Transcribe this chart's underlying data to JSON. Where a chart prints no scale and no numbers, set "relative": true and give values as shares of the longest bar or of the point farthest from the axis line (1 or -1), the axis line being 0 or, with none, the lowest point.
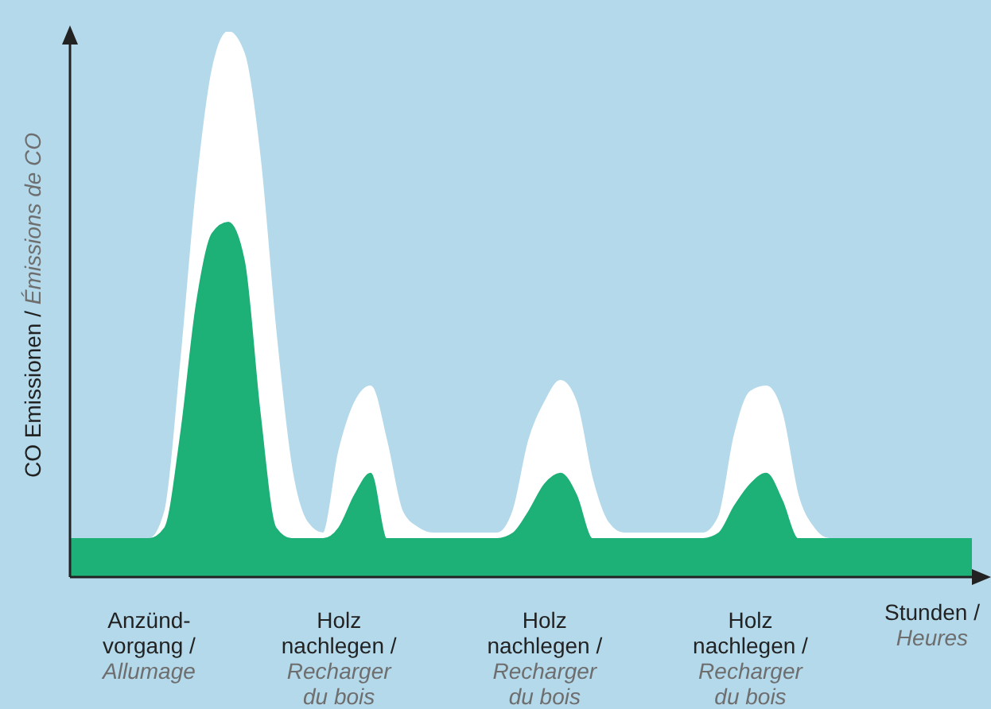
{
  "chart_data": {
    "type": "area",
    "relative": true,
    "ylabel": "CO Emissionen /\nÉmissions de CO",
    "xlabel": "Stunden /\nHeures",
    "categories": [
      null,
      null,
      null,
      null,
      null,
      "Anzünd-\nvorgang /\nAllumage",
      null,
      null,
      null,
      null,
      null,
      null,
      null,
      null,
      null,
      null,
      null,
      "Holz\nnachlegen /\nRecharger\ndu bois",
      null,
      null,
      null,
      null,
      null,
      null,
      null,
      null,
      null,
      null,
      null,
      null,
      "Holz\nnachlegen /\nRecharger\ndu bois",
      null,
      null,
      null,
      null,
      null,
      null,
      null,
      null,
      null,
      null,
      null,
      null,
      "Holz\nnachlegen /\nRecharger\ndu bois",
      null,
      null,
      null,
      null,
      null,
      null,
      null,
      null,
      null,
      null,
      null,
      null,
      null,
      null
    ],
    "series": [
      {
        "color": "#ffffff",
        "values": [
          0.07,
          0.07,
          0.07,
          0.07,
          0.07,
          0.07,
          0.12,
          0.39,
          0.71,
          0.93,
          1,
          0.96,
          0.77,
          0.45,
          0.2,
          0.1,
          0.08,
          0.23,
          0.32,
          0.35,
          0.25,
          0.12,
          0.09,
          0.08,
          0.08,
          0.08,
          0.08,
          0.08,
          0.12,
          0.25,
          0.32,
          0.36,
          0.32,
          0.18,
          0.1,
          0.08,
          0.08,
          0.08,
          0.08,
          0.08,
          0.08,
          0.11,
          0.26,
          0.34,
          0.35,
          0.3,
          0.15,
          0.09,
          0.07,
          0.07,
          0.07,
          0.07,
          0.07,
          0.07,
          0.07,
          0.07,
          0.07,
          0.07
        ]
      },
      {
        "color": "#1db077",
        "values": [
          0.07,
          0.07,
          0.07,
          0.07,
          0.07,
          0.07,
          0.09,
          0.26,
          0.5,
          0.63,
          0.65,
          0.58,
          0.3,
          0.09,
          0.07,
          0.07,
          0.07,
          0.09,
          0.15,
          0.19,
          0.07,
          0.07,
          0.07,
          0.07,
          0.07,
          0.07,
          0.07,
          0.07,
          0.08,
          0.12,
          0.17,
          0.19,
          0.15,
          0.07,
          0.07,
          0.07,
          0.07,
          0.07,
          0.07,
          0.07,
          0.07,
          0.08,
          0.13,
          0.17,
          0.19,
          0.14,
          0.07,
          0.07,
          0.07,
          0.07,
          0.07,
          0.07,
          0.07,
          0.07,
          0.07,
          0.07,
          0.07,
          0.07
        ]
      }
    ]
  }
}
